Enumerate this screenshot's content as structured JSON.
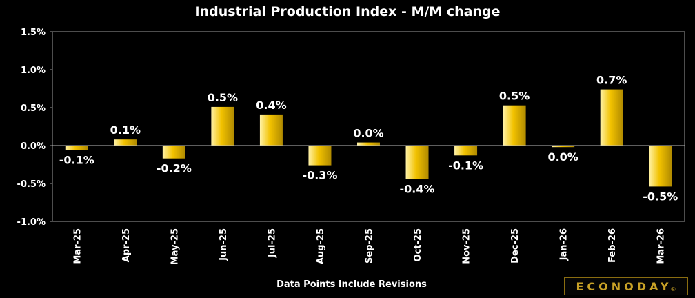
{
  "chart_data": {
    "type": "bar",
    "title": "Industrial Production Index - M/M change",
    "categories": [
      "Mar-25",
      "Apr-25",
      "May-25",
      "Jun-25",
      "Jul-25",
      "Aug-25",
      "Sep-25",
      "Oct-25",
      "Nov-25",
      "Dec-25",
      "Jan-26",
      "Feb-26",
      "Mar-26"
    ],
    "values": [
      -0.06,
      0.08,
      -0.17,
      0.51,
      0.41,
      -0.26,
      0.04,
      -0.44,
      -0.13,
      0.53,
      -0.02,
      0.74,
      -0.54
    ],
    "data_labels": [
      "-0.1%",
      "0.1%",
      "-0.2%",
      "0.5%",
      "0.4%",
      "-0.3%",
      "0.0%",
      "-0.4%",
      "-0.1%",
      "0.5%",
      "0.0%",
      "0.7%",
      "-0.5%"
    ],
    "ylim": [
      -1.0,
      1.5
    ],
    "yticks": [
      1.5,
      1.0,
      0.5,
      0.0,
      -0.5,
      -1.0
    ],
    "ytick_labels": [
      "1.5%",
      "1.0%",
      "0.5%",
      "0.0%",
      "-0.5%",
      "-1.0%"
    ],
    "xlabel": "",
    "ylabel": "",
    "grid": false,
    "legend": "none",
    "bar_color": "#e6b800",
    "footnote": "Data Points Include Revisions"
  },
  "brand": {
    "name": "ECONODAY",
    "mark": "®",
    "color": "#c9a227"
  }
}
